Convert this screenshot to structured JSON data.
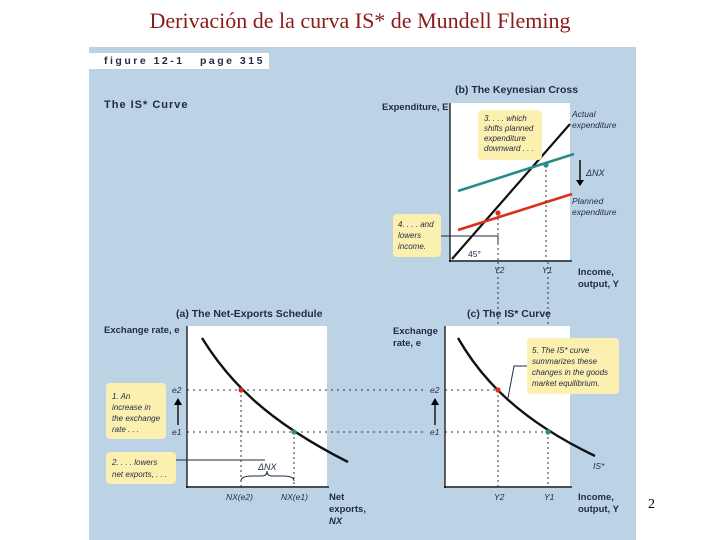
{
  "slide": {
    "title": "Derivación de la curva IS* de Mundell Fleming",
    "page_number": "2"
  },
  "figure": {
    "label": "figure 12-1",
    "page": "page 315",
    "heading": "The IS* Curve"
  },
  "panel_b": {
    "title": "(b) The Keynesian Cross",
    "y_axis": "Expenditure, E",
    "actual_line": [
      "Actual",
      "expenditure"
    ],
    "planned_line": [
      "Planned",
      "expenditure"
    ],
    "delta_nx": "ΔNX",
    "angle": "45°",
    "x_tick_left": "Y2",
    "x_tick_right": "Y1",
    "x_axis": [
      "Income,",
      "output, Y"
    ],
    "note3": [
      "3. . . . which",
      "shifts planned",
      "expenditure",
      "downward . . ."
    ],
    "note4": [
      "4. . . . and",
      "lowers",
      "income."
    ]
  },
  "panel_a": {
    "title": "(a) The Net-Exports Schedule",
    "y_axis": "Exchange rate, e",
    "tick_e2": "e2",
    "tick_e1": "e1",
    "note1": [
      "1. An",
      "increase in",
      "the exchange",
      "rate . . ."
    ],
    "note2": [
      "2. . . . lowers",
      "net exports, . . ."
    ],
    "delta_nx": "ΔNX",
    "x_tick_left": "NX(e2)",
    "x_tick_right": "NX(e1)",
    "x_axis": [
      "Net",
      "exports,",
      "NX"
    ]
  },
  "panel_c": {
    "title": "(c) The IS* Curve",
    "y_axis": [
      "Exchange",
      "rate, e"
    ],
    "tick_e2": "e2",
    "tick_e1": "e1",
    "note5": [
      "5. The IS* curve",
      "summarizes these",
      "changes in the goods",
      "market equilibrium."
    ],
    "curve_label": "IS*",
    "x_tick_left": "Y2",
    "x_tick_right": "Y1",
    "x_axis": [
      "Income,",
      "output, Y"
    ]
  },
  "colors": {
    "title": "#8b1a1a",
    "panel": "#bcd3e6",
    "note": "#fbf0b0",
    "actual": "#111111",
    "planned_high": "#2d8a8a",
    "planned_low": "#d9301e",
    "point_red": "#d9301e",
    "point_teal": "#2d8a8a"
  }
}
